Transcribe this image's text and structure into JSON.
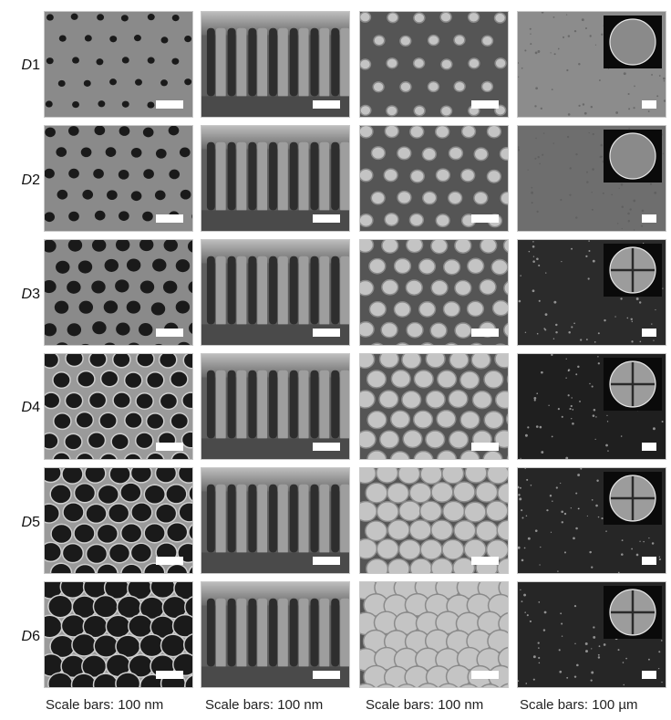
{
  "figure": {
    "rows": [
      {
        "id": "D1",
        "letter": "D",
        "number": "1",
        "background": "#8c8c8c",
        "insetBrightness": "dark"
      },
      {
        "id": "D2",
        "letter": "D",
        "number": "2",
        "background": "#6e6e6e",
        "insetBrightness": "dark"
      },
      {
        "id": "D3",
        "letter": "D",
        "number": "3",
        "background": "#2b2b2b",
        "insetBrightness": "bright"
      },
      {
        "id": "D4",
        "letter": "D",
        "number": "4",
        "background": "#1f1f1f",
        "insetBrightness": "bright"
      },
      {
        "id": "D5",
        "letter": "D",
        "number": "5",
        "background": "#262626",
        "insetBrightness": "bright"
      },
      {
        "id": "D6",
        "letter": "D",
        "number": "6",
        "background": "#262626",
        "insetBrightness": "bright"
      }
    ],
    "columns": [
      {
        "kind": "pores-top-view",
        "caption": "Scale bars: 100 nm"
      },
      {
        "kind": "pores-cross-section",
        "caption": "Scale bars: 100 nm"
      },
      {
        "kind": "pillars-top-view",
        "caption": "Scale bars: 100 nm"
      },
      {
        "kind": "optical-with-inset",
        "caption": "Scale bars: 100 µm"
      }
    ],
    "colors": {
      "sem_base": "#7a7a7a",
      "pore_dark": "#1a1a1a",
      "pillar_light": "#c4c4c4",
      "pillar_base": "#555555",
      "scale_bar": "#ffffff"
    }
  }
}
